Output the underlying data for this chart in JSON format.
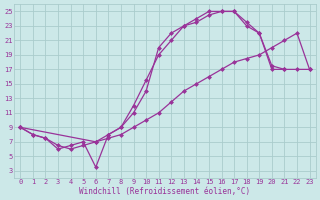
{
  "xlabel": "Windchill (Refroidissement éolien,°C)",
  "background_color": "#cce8e8",
  "line_color": "#993399",
  "grid_color": "#aacccc",
  "xlim": [
    -0.5,
    23.5
  ],
  "ylim": [
    2,
    26
  ],
  "xticks": [
    0,
    1,
    2,
    3,
    4,
    5,
    6,
    7,
    8,
    9,
    10,
    11,
    12,
    13,
    14,
    15,
    16,
    17,
    18,
    19,
    20,
    21,
    22,
    23
  ],
  "yticks": [
    3,
    5,
    7,
    9,
    11,
    13,
    15,
    17,
    19,
    21,
    23,
    25
  ],
  "line1_x": [
    0,
    1,
    2,
    3,
    4,
    5,
    6,
    7,
    8,
    9,
    10,
    11,
    12,
    13,
    14,
    15,
    16,
    17,
    18,
    19,
    20,
    21
  ],
  "line1_y": [
    9,
    8,
    7.5,
    6,
    6.5,
    7,
    3.5,
    8,
    9,
    11,
    14,
    20,
    22,
    23,
    24,
    25,
    25,
    25,
    23,
    22,
    17.5,
    17
  ],
  "line2_x": [
    0,
    1,
    2,
    3,
    4,
    5,
    6,
    7,
    8,
    9,
    10,
    11,
    12,
    13,
    14,
    15,
    16,
    17,
    18,
    19,
    20,
    21,
    22,
    23
  ],
  "line2_y": [
    9,
    8,
    7.5,
    6.5,
    6,
    6.5,
    7,
    7.5,
    8,
    9,
    10,
    11,
    12.5,
    14,
    15,
    16,
    17,
    18,
    18.5,
    19,
    20,
    21,
    22,
    17
  ],
  "line3_x": [
    0,
    6,
    7,
    8,
    9,
    10,
    11,
    12,
    13,
    14,
    15,
    16,
    17,
    18,
    19,
    20,
    21,
    22,
    23
  ],
  "line3_y": [
    9,
    7,
    8,
    9,
    12,
    15.5,
    19,
    21,
    23,
    23.5,
    24.5,
    25,
    25,
    23.5,
    22,
    17,
    17,
    17,
    17
  ],
  "marker_size": 2.5,
  "linewidth": 0.9,
  "tick_fontsize": 5,
  "xlabel_fontsize": 5.5
}
